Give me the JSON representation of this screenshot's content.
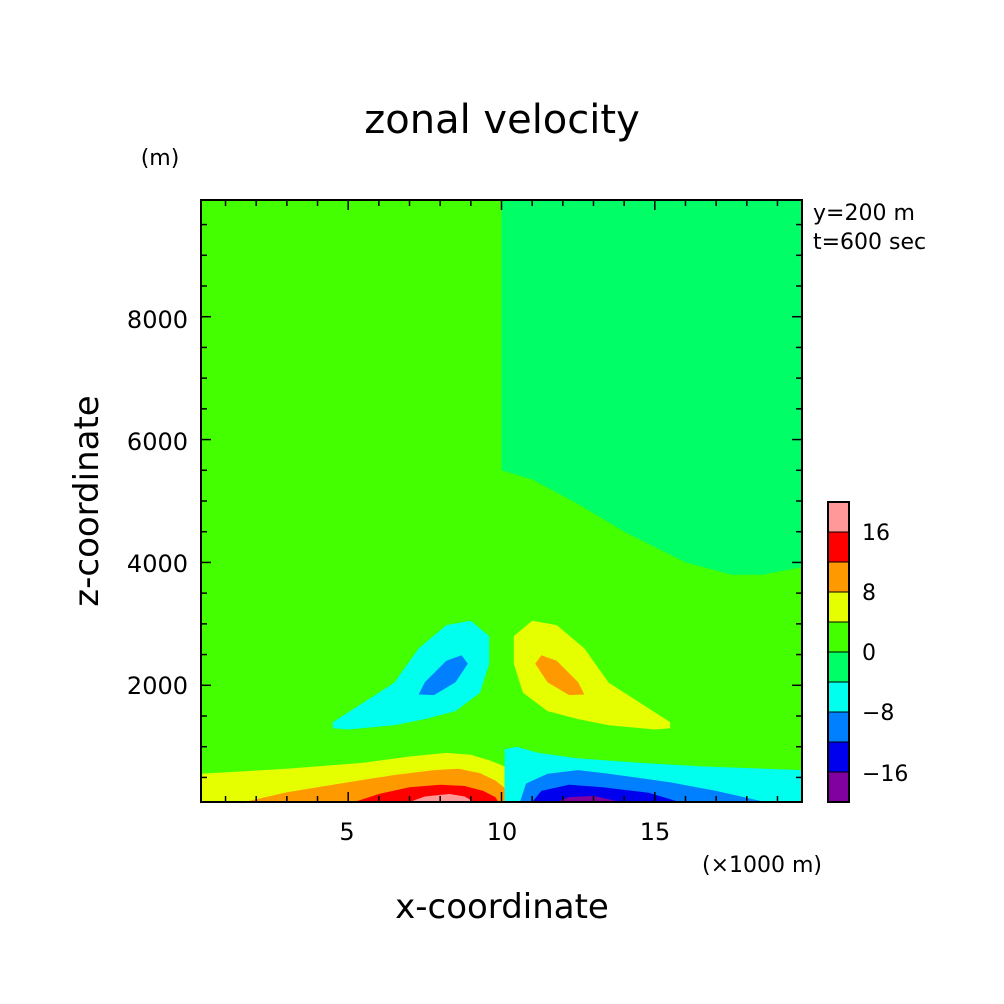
{
  "chart_data": {
    "type": "heatmap",
    "title": "zonal velocity",
    "xlabel": "x-coordinate",
    "ylabel": "z-coordinate",
    "x_unit": "(×1000 m)",
    "y_unit": "(m)",
    "annotations": [
      "y=200 m",
      "t=600 sec"
    ],
    "xlim": [
      0.2,
      19.8
    ],
    "ylim": [
      100,
      9900
    ],
    "x_ticks": [
      5,
      10,
      15
    ],
    "y_ticks": [
      2000,
      4000,
      6000,
      8000
    ],
    "x_tick_labels": [
      "5",
      "10",
      "15"
    ],
    "y_tick_labels": [
      "2000",
      "4000",
      "6000",
      "8000"
    ],
    "colorbar": {
      "levels": [
        -24,
        -20,
        -16,
        -12,
        -8,
        -4,
        0,
        4,
        8,
        12,
        16,
        20,
        24
      ],
      "labels": [
        "16",
        "8",
        "0",
        "−8",
        "−16"
      ],
      "label_values": [
        16,
        8,
        0,
        -8,
        -16
      ],
      "colors": [
        "#8000a0",
        "#0000ee",
        "#0080ff",
        "#00ffee",
        "#00ff66",
        "#44ff00",
        "#e6ff00",
        "#ff9900",
        "#ff0000",
        "#ff9999"
      ]
    },
    "fill_colors": {
      "v_-20": "#8000a0",
      "v_-16": "#0000ee",
      "v_-12": "#0080ff",
      "v_-8": "#00ffee",
      "v_-4": "#00ff66",
      "v_0": "#44ff00",
      "v_4": "#e6ff00",
      "v_8": "#ff9900",
      "v_12": "#ff0000",
      "v_16": "#ff9999"
    },
    "regions": [
      {
        "band": "0 to 4",
        "color": "#44ff00",
        "points": [
          [
            0.2,
            9900
          ],
          [
            10,
            9900
          ],
          [
            10,
            5500
          ],
          [
            9,
            5350
          ],
          [
            7.5,
            4950
          ],
          [
            6,
            4500
          ],
          [
            4,
            4000
          ],
          [
            2.5,
            3800
          ],
          [
            1.5,
            3800
          ],
          [
            0.2,
            3920
          ]
        ]
      },
      {
        "band": "-4 to 0",
        "color": "#00ff66",
        "points": [
          [
            10,
            9900
          ],
          [
            19.8,
            9900
          ],
          [
            19.8,
            3920
          ],
          [
            18.5,
            3800
          ],
          [
            17.5,
            3800
          ],
          [
            16,
            4000
          ],
          [
            14,
            4500
          ],
          [
            12.5,
            4950
          ],
          [
            11,
            5350
          ],
          [
            10,
            5500
          ]
        ]
      },
      {
        "band": "4 to 8",
        "color": "#e6ff00",
        "points": [
          [
            0.2,
            100
          ],
          [
            0.2,
            560
          ],
          [
            3,
            640
          ],
          [
            5.5,
            740
          ],
          [
            7,
            840
          ],
          [
            8.2,
            900
          ],
          [
            9,
            870
          ],
          [
            9.6,
            780
          ],
          [
            10.1,
            680
          ],
          [
            10.1,
            100
          ]
        ]
      },
      {
        "band": "8 to 12",
        "color": "#ff9900",
        "points": [
          [
            1.6,
            100
          ],
          [
            3,
            260
          ],
          [
            5,
            420
          ],
          [
            6.5,
            540
          ],
          [
            7.8,
            620
          ],
          [
            8.6,
            640
          ],
          [
            9.3,
            570
          ],
          [
            9.8,
            450
          ],
          [
            10.1,
            330
          ],
          [
            10.1,
            100
          ]
        ]
      },
      {
        "band": "12 to 16",
        "color": "#ff0000",
        "points": [
          [
            5.2,
            100
          ],
          [
            6,
            230
          ],
          [
            7,
            340
          ],
          [
            8,
            380
          ],
          [
            8.8,
            360
          ],
          [
            9.4,
            280
          ],
          [
            9.8,
            180
          ],
          [
            9.9,
            100
          ]
        ]
      },
      {
        "band": "16 to 20",
        "color": "#ff9999",
        "points": [
          [
            7,
            100
          ],
          [
            7.5,
            190
          ],
          [
            8.3,
            230
          ],
          [
            8.8,
            190
          ],
          [
            9.1,
            100
          ]
        ]
      },
      {
        "band": "-8 to -4",
        "color": "#00ffee",
        "points": [
          [
            10.1,
            100
          ],
          [
            10.1,
            960
          ],
          [
            10.5,
            1000
          ],
          [
            11.2,
            900
          ],
          [
            12.5,
            810
          ],
          [
            14.5,
            740
          ],
          [
            16.5,
            680
          ],
          [
            19.8,
            620
          ],
          [
            19.8,
            100
          ]
        ]
      },
      {
        "band": "-12 to -8",
        "color": "#0080ff",
        "points": [
          [
            10.6,
            100
          ],
          [
            10.8,
            400
          ],
          [
            11.5,
            560
          ],
          [
            12.5,
            620
          ],
          [
            13.5,
            560
          ],
          [
            15.5,
            420
          ],
          [
            17,
            280
          ],
          [
            18.6,
            100
          ]
        ]
      },
      {
        "band": "-16 to -12",
        "color": "#0000ee",
        "points": [
          [
            11,
            100
          ],
          [
            11.3,
            280
          ],
          [
            12.2,
            380
          ],
          [
            13.3,
            340
          ],
          [
            14.8,
            250
          ],
          [
            15.8,
            100
          ]
        ]
      },
      {
        "band": "-20 to -16",
        "color": "#8000a0",
        "points": [
          [
            11.8,
            100
          ],
          [
            12.2,
            180
          ],
          [
            13,
            200
          ],
          [
            13.9,
            100
          ]
        ]
      },
      {
        "band": "-8 to -4",
        "color": "#00ffee",
        "points": [
          [
            4.5,
            1400
          ],
          [
            5.5,
            1720
          ],
          [
            6.5,
            2040
          ],
          [
            7.3,
            2600
          ],
          [
            8.2,
            2980
          ],
          [
            9,
            3050
          ],
          [
            9.6,
            2800
          ],
          [
            9.6,
            2350
          ],
          [
            9.3,
            1880
          ],
          [
            8.5,
            1580
          ],
          [
            7.5,
            1450
          ],
          [
            6.5,
            1350
          ],
          [
            5,
            1280
          ],
          [
            4.5,
            1300
          ]
        ]
      },
      {
        "band": "-12 to -8",
        "color": "#0080ff",
        "points": [
          [
            7.3,
            1850
          ],
          [
            7.5,
            2050
          ],
          [
            8.2,
            2400
          ],
          [
            8.7,
            2490
          ],
          [
            8.9,
            2350
          ],
          [
            8.5,
            2050
          ],
          [
            7.8,
            1840
          ]
        ]
      },
      {
        "band": "4 to 8",
        "color": "#e6ff00",
        "points": [
          [
            15.5,
            1400
          ],
          [
            14.5,
            1720
          ],
          [
            13.5,
            2040
          ],
          [
            12.7,
            2600
          ],
          [
            11.8,
            2980
          ],
          [
            11,
            3050
          ],
          [
            10.4,
            2800
          ],
          [
            10.4,
            2350
          ],
          [
            10.7,
            1880
          ],
          [
            11.5,
            1580
          ],
          [
            12.5,
            1450
          ],
          [
            13.5,
            1350
          ],
          [
            15,
            1280
          ],
          [
            15.5,
            1300
          ]
        ]
      },
      {
        "band": "8 to 12",
        "color": "#ff9900",
        "points": [
          [
            12.7,
            1850
          ],
          [
            12.5,
            2050
          ],
          [
            11.8,
            2400
          ],
          [
            11.3,
            2490
          ],
          [
            11.1,
            2350
          ],
          [
            11.5,
            2050
          ],
          [
            12.2,
            1840
          ]
        ]
      }
    ]
  }
}
